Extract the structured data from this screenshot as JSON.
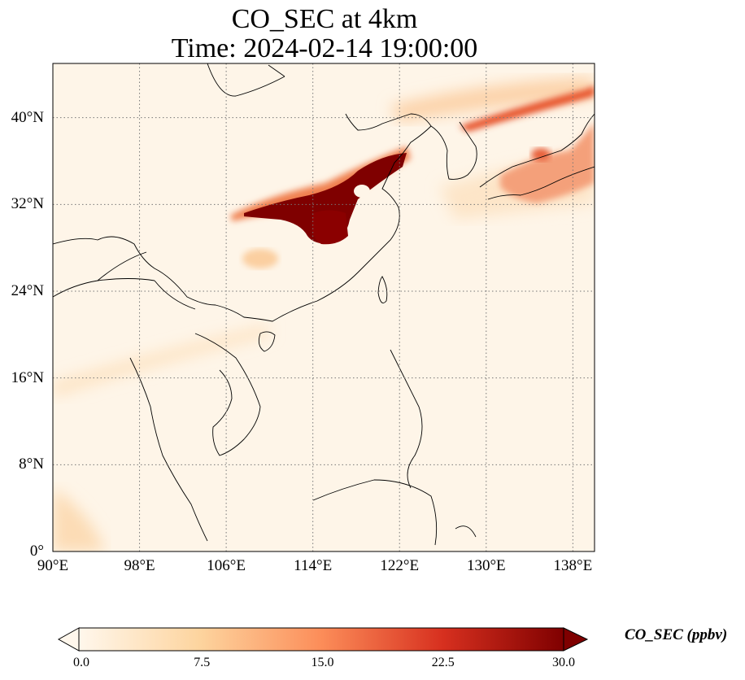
{
  "title_line1": "CO_SEC at 4km",
  "title_line2": "Time: 2024-02-14 19:00:00",
  "x_ticks": [
    "90°E",
    "98°E",
    "106°E",
    "114°E",
    "122°E",
    "130°E",
    "138°E"
  ],
  "y_ticks": [
    "40°N",
    "32°N",
    "24°N",
    "16°N",
    "8°N",
    "0°"
  ],
  "colorbar": {
    "label": "CO_SEC (ppbv)",
    "ticks": [
      "0.0",
      "7.5",
      "15.0",
      "22.5",
      "30.0"
    ],
    "min": 0,
    "max": 30,
    "colormap": "OrRd",
    "extend": "both"
  },
  "map_extent": {
    "lon_min": 90,
    "lon_max": 140,
    "lat_min": 0,
    "lat_max": 45
  },
  "gridlines": "dotted",
  "colors": {
    "low": "#fff7ec",
    "mid": "#fc8d59",
    "high": "#7f0000"
  }
}
